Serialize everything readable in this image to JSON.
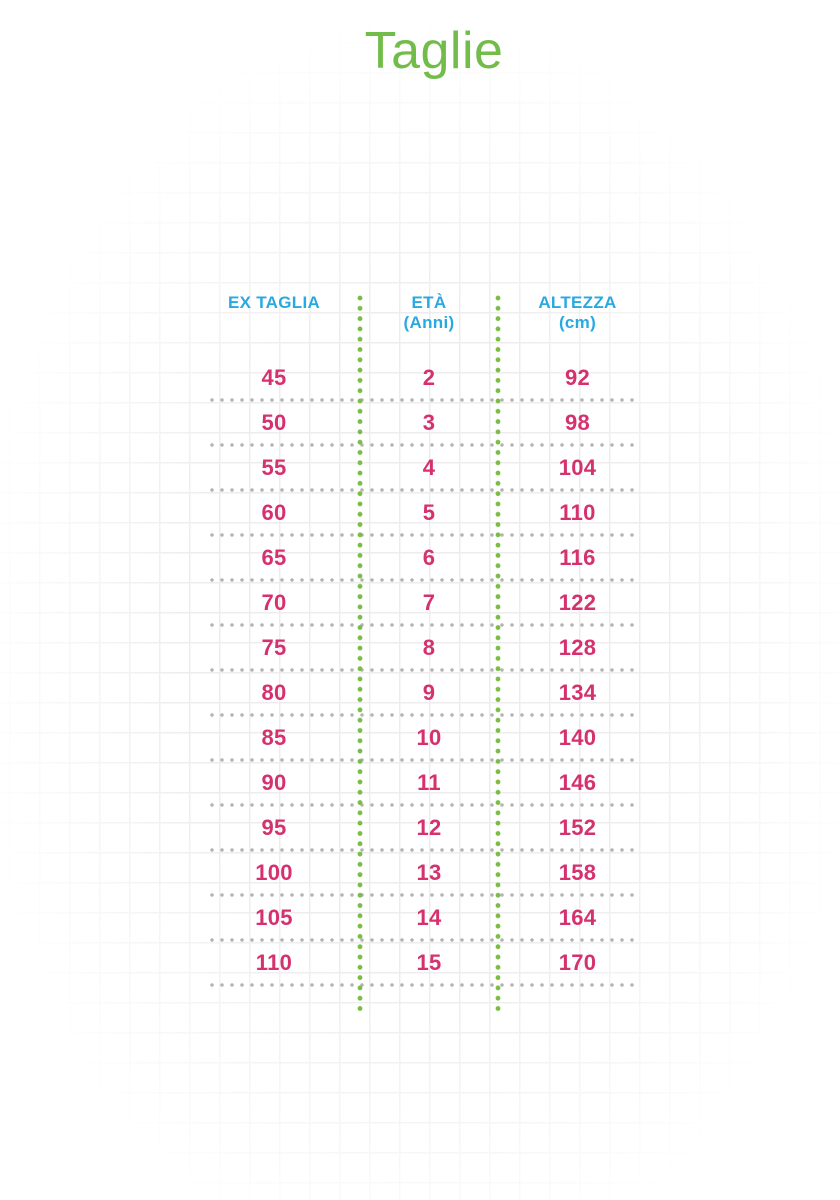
{
  "title": "Taglie",
  "table": {
    "headers": {
      "col1": {
        "line1": "EX TAGLIA",
        "line2": ""
      },
      "col2": {
        "line1": "ETÀ",
        "line2": "(Anni)"
      },
      "col3": {
        "line1": "ALTEZZA",
        "line2": "(cm)"
      }
    },
    "rows": [
      {
        "ex": "45",
        "eta": "2",
        "cm": "92"
      },
      {
        "ex": "50",
        "eta": "3",
        "cm": "98"
      },
      {
        "ex": "55",
        "eta": "4",
        "cm": "104"
      },
      {
        "ex": "60",
        "eta": "5",
        "cm": "110"
      },
      {
        "ex": "65",
        "eta": "6",
        "cm": "116"
      },
      {
        "ex": "70",
        "eta": "7",
        "cm": "122"
      },
      {
        "ex": "75",
        "eta": "8",
        "cm": "128"
      },
      {
        "ex": "80",
        "eta": "9",
        "cm": "134"
      },
      {
        "ex": "85",
        "eta": "10",
        "cm": "140"
      },
      {
        "ex": "90",
        "eta": "11",
        "cm": "146"
      },
      {
        "ex": "95",
        "eta": "12",
        "cm": "152"
      },
      {
        "ex": "100",
        "eta": "13",
        "cm": "158"
      },
      {
        "ex": "105",
        "eta": "14",
        "cm": "164"
      },
      {
        "ex": "110",
        "eta": "15",
        "cm": "170"
      }
    ]
  },
  "colors": {
    "title_green": "#72bd49",
    "header_cyan": "#29a9e1",
    "value_pink": "#d5316e",
    "dots_green": "#7abd45",
    "dots_gray": "#b3b3b3",
    "grid_line": "#efeced",
    "background": "#ffffff"
  },
  "chart_data": {
    "type": "table",
    "title": "Taglie",
    "columns": [
      "EX TAGLIA",
      "ETÀ (Anni)",
      "ALTEZZA (cm)"
    ],
    "rows": [
      [
        45,
        2,
        92
      ],
      [
        50,
        3,
        98
      ],
      [
        55,
        4,
        104
      ],
      [
        60,
        5,
        110
      ],
      [
        65,
        6,
        116
      ],
      [
        70,
        7,
        122
      ],
      [
        75,
        8,
        128
      ],
      [
        80,
        9,
        134
      ],
      [
        85,
        10,
        140
      ],
      [
        90,
        11,
        146
      ],
      [
        95,
        12,
        152
      ],
      [
        100,
        13,
        158
      ],
      [
        105,
        14,
        164
      ],
      [
        110,
        15,
        170
      ]
    ]
  }
}
